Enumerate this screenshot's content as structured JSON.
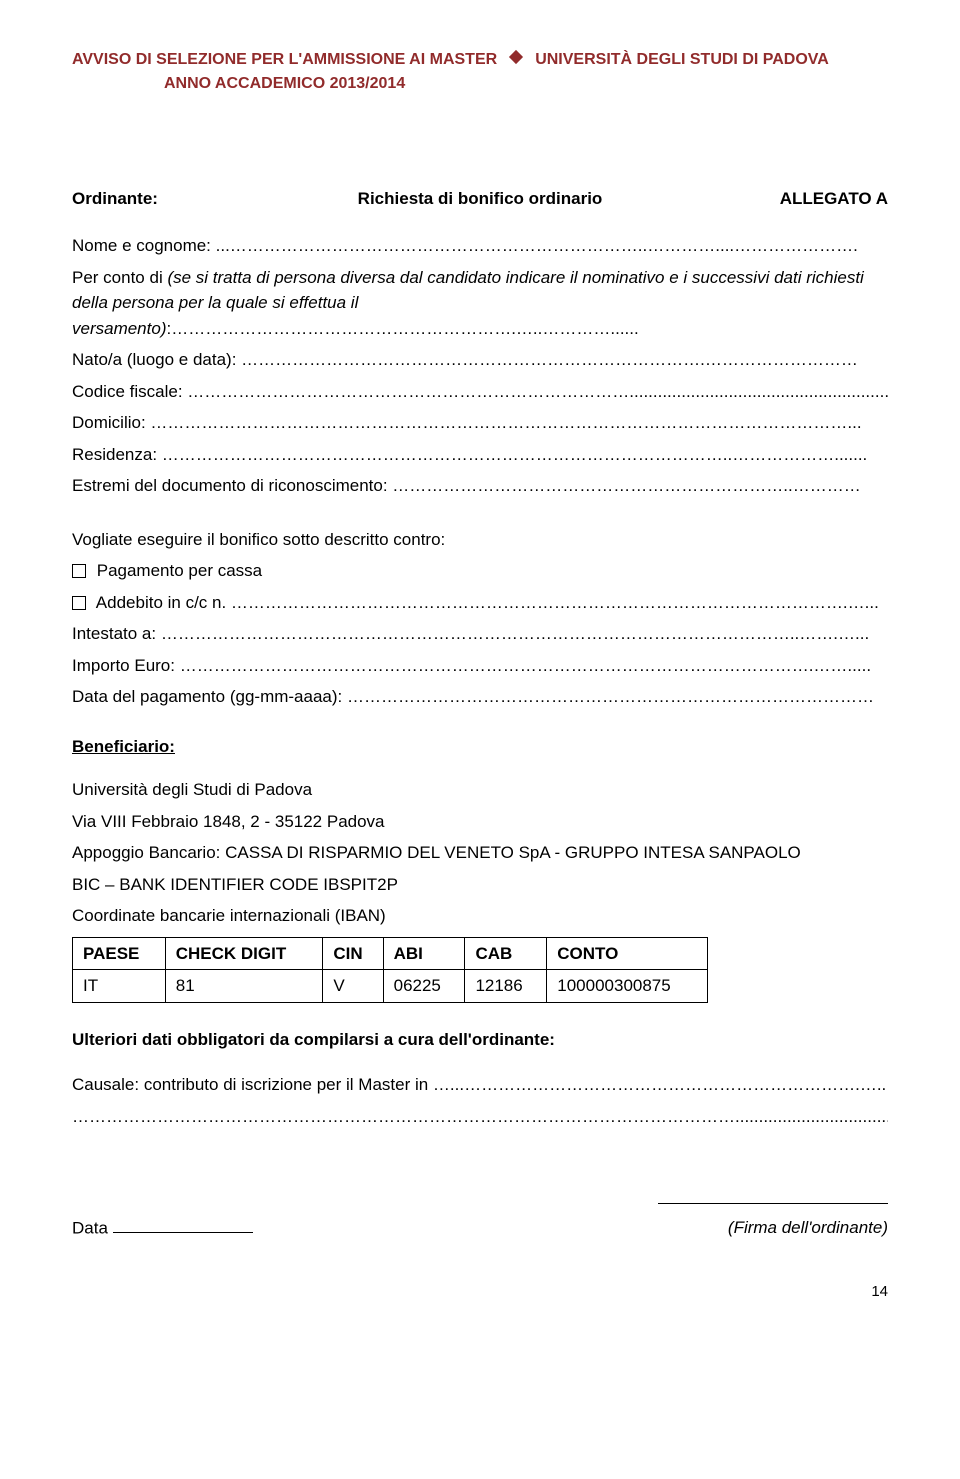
{
  "header": {
    "left_line1": "AVVISO DI SELEZIONE PER L'AMMISSIONE AI MASTER",
    "left_line2": "ANNO ACCADEMICO 2013/2014",
    "right": "UNIVERSITÀ DEGLI STUDI DI PADOVA"
  },
  "allegato": "ALLEGATO A",
  "richiesta_title": "Richiesta di bonifico ordinario",
  "ordinante_label": "Ordinante:",
  "fields": {
    "nome_cognome": "Nome e cognome: ...………………………………………………………………..…………....………………….",
    "per_conto": "Per conto di (se si tratta di persona diversa dal candidato indicare il nominativo e i successivi dati richiesti della persona per la quale si effettua il versamento):…………………………………………………….…..…………......",
    "nato": "Nato/a (luogo e data): ……………………………………………………………………….………………………",
    "codice_fiscale": "Codice fiscale: …………………………………………………………………….......................................................",
    "domicilio": "Domicilio: ……………………………………………………………………………………………………………...",
    "residenza": "Residenza: ………………………………………………………………………………………..……………….......",
    "estremi": "Estremi del documento di riconoscimento: ……………………………………………………………..…………"
  },
  "vogliate": "Vogliate eseguire il bonifico sotto descritto contro:",
  "pagamento_cassa": "Pagamento per cassa",
  "addebito": "Addebito in c/c n. ……………………………………………………………………………………………….…...",
  "intestato": "Intestato a: …………………………………………………………………………………………………..…….…...",
  "importo": "Importo Euro: ………………………………………………………………………………………………….…….....",
  "data_pagamento": "Data del pagamento (gg-mm-aaaa): …………………………………………………………………………………",
  "beneficiario_label": "Beneficiario:",
  "bank": {
    "line1": "Università degli Studi di Padova",
    "line2": "Via VIII Febbraio 1848, 2 - 35122 Padova",
    "line3": "Appoggio Bancario: CASSA DI RISPARMIO DEL VENETO SpA - GRUPPO INTESA SANPAOLO",
    "line4": "BIC – BANK IDENTIFIER CODE IBSPIT2P",
    "line5": "Coordinate bancarie internazionali (IBAN)"
  },
  "iban_table": {
    "headers": [
      "PAESE",
      "CHECK DIGIT",
      "CIN",
      "ABI",
      "CAB",
      "CONTO"
    ],
    "row": [
      "IT",
      "81",
      "V",
      "06225",
      "12186",
      "100000300875"
    ]
  },
  "ulteriori": "Ulteriori dati obbligatori da compilarsi a cura dell'ordinante:",
  "causale": "Causale: contributo di iscrizione per il Master in …...…………………………………………………………….…..",
  "causale_line2": "………………………………………………………………………………………………………..................................",
  "data_label": "Data",
  "firma_label": "(Firma dell'ordinante)",
  "page_number": "14"
}
